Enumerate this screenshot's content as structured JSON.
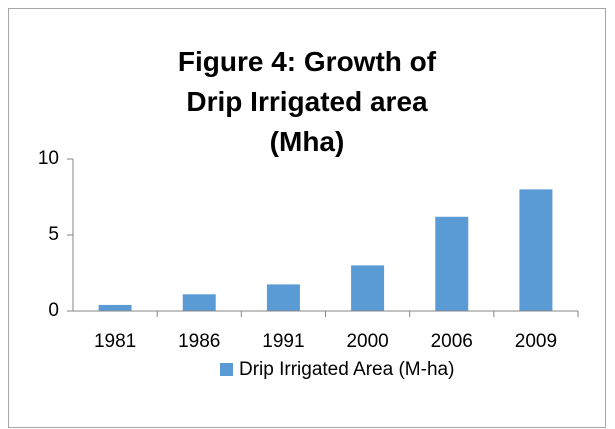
{
  "chart_data": {
    "type": "bar",
    "title": "Figure 4: Growth of Drip Irrigated area (Mha)",
    "categories": [
      "1981",
      "1986",
      "1991",
      "2000",
      "2006",
      "2009"
    ],
    "series": [
      {
        "name": "Drip Irrigated Area (M-ha)",
        "color": "#5b9bd5",
        "values": [
          0.4,
          1.1,
          1.75,
          3.0,
          6.2,
          8.0
        ]
      }
    ],
    "ylim": [
      0,
      10
    ],
    "yticks": [
      0,
      5,
      10
    ],
    "grid": false,
    "legend": "bottom"
  }
}
